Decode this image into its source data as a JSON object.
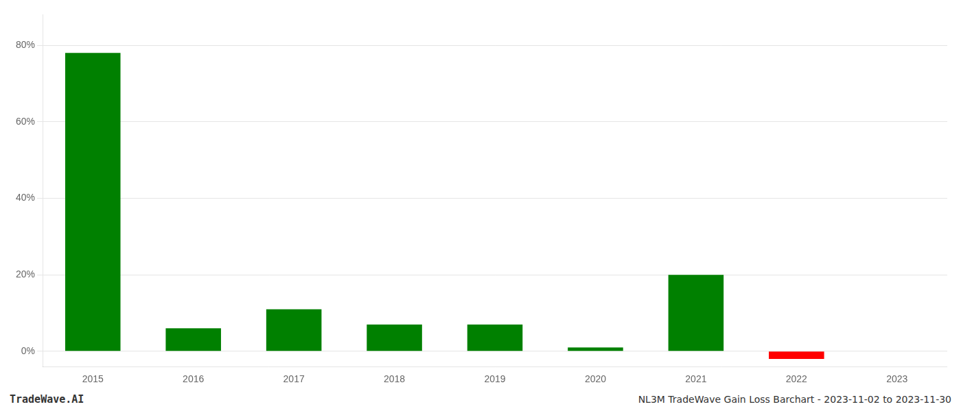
{
  "chart_data": {
    "type": "bar",
    "categories": [
      "2015",
      "2016",
      "2017",
      "2018",
      "2019",
      "2020",
      "2021",
      "2022",
      "2023"
    ],
    "values": [
      0.78,
      0.06,
      0.11,
      0.07,
      0.07,
      0.01,
      0.2,
      -0.02,
      0.0
    ],
    "colors": [
      "#008000",
      "#008000",
      "#008000",
      "#008000",
      "#008000",
      "#008000",
      "#008000",
      "#ff0000",
      "#008000"
    ],
    "ylim": [
      -0.04,
      0.88
    ],
    "yticks": [
      {
        "value": 0.0,
        "label": "0%"
      },
      {
        "value": 0.2,
        "label": "20%"
      },
      {
        "value": 0.4,
        "label": "40%"
      },
      {
        "value": 0.6,
        "label": "60%"
      },
      {
        "value": 0.8,
        "label": "80%"
      }
    ],
    "grid": true,
    "annotations": [
      "TradeWave.AI",
      "NL3M TradeWave Gain Loss Barchart - 2023-11-02 to 2023-11-30"
    ]
  }
}
